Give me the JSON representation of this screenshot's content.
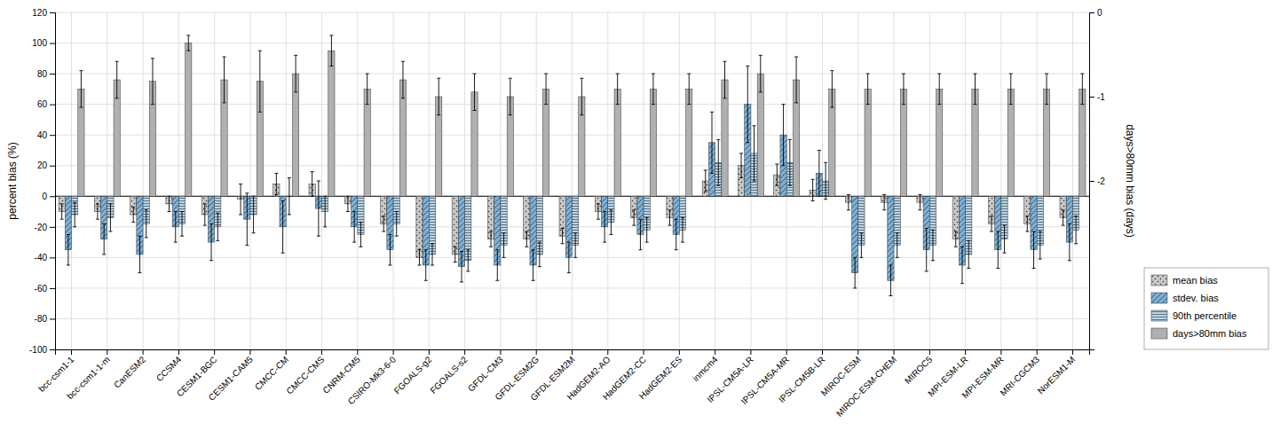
{
  "chart_data": {
    "type": "bar",
    "categories": [
      "bcc-csm1-1",
      "bcc-csm1-1-m",
      "CanESM2",
      "CCSM4",
      "CESM1-BGC",
      "CESM1-CAM5",
      "CMCC-CM",
      "CMCC-CMS",
      "CNRM-CM5",
      "CSIRO-Mk3-6-0",
      "FGOALS-g2",
      "FGOALS-s2",
      "GFDL-CM3",
      "GFDL-ESM2G",
      "GFDL-ESM2M",
      "HadGEM2-AO",
      "HadGEM2-CC",
      "HadGEM2-ES",
      "inmcm4",
      "IPSL-CM5A-LR",
      "IPSL-CM5A-MR",
      "IPSL-CM5B-LR",
      "MIROC-ESM",
      "MIROC-ESM-CHEM",
      "MIROC5",
      "MPI-ESM-LR",
      "MPI-ESM-MR",
      "MRI-CGCM3",
      "NorESM1-M"
    ],
    "series": [
      {
        "name": "mean bias",
        "color": "#c8c8c8",
        "values": [
          -10,
          -10,
          -12,
          -5,
          -12,
          -2,
          8,
          8,
          -5,
          -18,
          -40,
          -38,
          -28,
          -28,
          -26,
          -10,
          -14,
          -14,
          10,
          20,
          14,
          4,
          -4,
          -4,
          -4,
          -28,
          -18,
          -18,
          -14
        ],
        "errors": [
          5,
          5,
          5,
          5,
          7,
          10,
          7,
          8,
          5,
          5,
          5,
          5,
          5,
          5,
          5,
          5,
          5,
          5,
          7,
          8,
          7,
          7,
          5,
          5,
          5,
          5,
          5,
          5,
          5
        ]
      },
      {
        "name": "stdev. bias",
        "color": "#7ab0d8",
        "values": [
          -35,
          -28,
          -38,
          -20,
          -30,
          -15,
          -20,
          -8,
          -20,
          -35,
          -45,
          -46,
          -45,
          -45,
          -40,
          -20,
          -25,
          -25,
          35,
          60,
          40,
          15,
          -50,
          -55,
          -35,
          -45,
          -35,
          -35,
          -30
        ],
        "errors": [
          10,
          10,
          12,
          10,
          12,
          17,
          17,
          18,
          10,
          10,
          10,
          10,
          10,
          10,
          10,
          10,
          10,
          10,
          20,
          25,
          20,
          15,
          10,
          10,
          14,
          12,
          12,
          12,
          12
        ]
      },
      {
        "name": "90th percentile",
        "color": "#b8d4e8",
        "values": [
          -12,
          -14,
          -18,
          -18,
          -20,
          -12,
          0,
          -10,
          -25,
          -18,
          -38,
          -42,
          -32,
          -38,
          -32,
          -17,
          -22,
          -22,
          22,
          28,
          22,
          10,
          -32,
          -32,
          -32,
          -38,
          -28,
          -32,
          -22
        ],
        "errors": [
          8,
          9,
          9,
          8,
          9,
          12,
          12,
          10,
          8,
          8,
          7,
          7,
          8,
          8,
          8,
          8,
          8,
          8,
          15,
          18,
          15,
          12,
          8,
          8,
          10,
          9,
          9,
          9,
          9
        ]
      },
      {
        "name": "days>80mm bias",
        "color": "#b0b0b0",
        "values": [
          70,
          76,
          75,
          100,
          76,
          75,
          80,
          95,
          70,
          76,
          65,
          68,
          65,
          70,
          65,
          70,
          70,
          70,
          76,
          80,
          76,
          70,
          70,
          70,
          70,
          70,
          70,
          70,
          70
        ],
        "errors": [
          12,
          12,
          15,
          5,
          15,
          20,
          12,
          10,
          10,
          12,
          12,
          12,
          12,
          10,
          12,
          10,
          10,
          10,
          12,
          12,
          15,
          12,
          10,
          10,
          10,
          10,
          10,
          10,
          10
        ]
      }
    ],
    "ylabel": "percent bias (%)",
    "y2label": "days>80mm bias (days)",
    "ylim": [
      -100,
      120
    ],
    "yticks": [
      -100,
      -80,
      -60,
      -40,
      -20,
      0,
      20,
      40,
      60,
      80,
      100,
      120
    ],
    "y2lim": [
      -4.0,
      0
    ],
    "y2ticks": [
      0,
      -1,
      -2
    ],
    "grid": true,
    "legend": "lower right"
  }
}
